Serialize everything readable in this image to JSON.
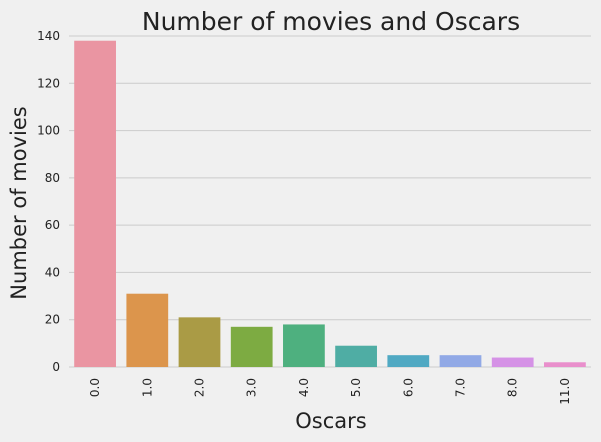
{
  "chart_data": {
    "type": "bar",
    "title": "Number of movies and Oscars",
    "xlabel": "Oscars",
    "ylabel": "Number of movies",
    "categories": [
      "0.0",
      "1.0",
      "2.0",
      "3.0",
      "4.0",
      "5.0",
      "6.0",
      "7.0",
      "8.0",
      "11.0"
    ],
    "values": [
      138,
      31,
      21,
      17,
      18,
      9,
      5,
      5,
      4,
      2
    ],
    "ylim": [
      0,
      140
    ],
    "yticks": [
      "0",
      "20",
      "40",
      "60",
      "80",
      "100",
      "120",
      "140"
    ],
    "grid": true,
    "colors": [
      "#ea95a2",
      "#dc954c",
      "#aa9b45",
      "#7dab42",
      "#4eb07f",
      "#4fada4",
      "#50a9c3",
      "#91a9e6",
      "#d592e6",
      "#e98fcc"
    ]
  }
}
